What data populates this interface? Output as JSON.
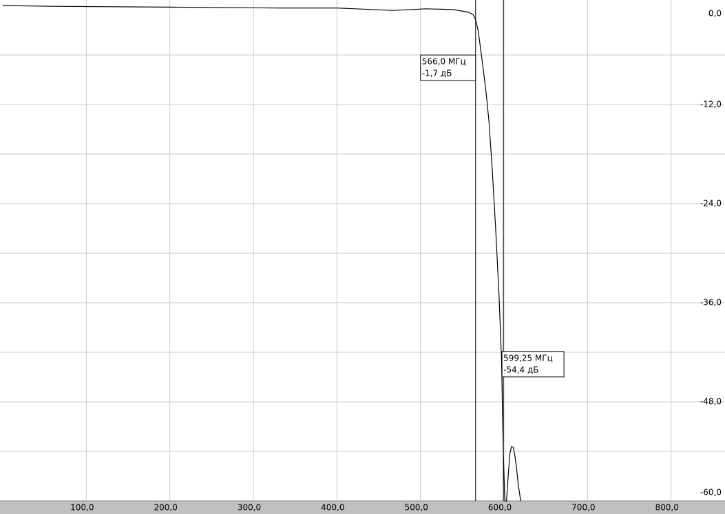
{
  "chart_data": {
    "type": "line",
    "x": [
      0,
      58,
      200,
      330,
      400,
      467,
      507,
      540,
      557,
      563,
      566,
      569,
      573,
      578,
      582,
      586,
      590,
      594,
      597,
      599.25,
      601,
      603,
      605,
      607,
      609,
      611,
      613,
      615,
      617,
      620
    ],
    "values": [
      0,
      -0.1,
      -0.2,
      -0.3,
      -0.3,
      -0.6,
      -0.4,
      -0.5,
      -0.8,
      -1.1,
      -1.7,
      -3,
      -6,
      -10,
      -14,
      -20,
      -27,
      -35,
      -42.7,
      -54.4,
      -60,
      -60,
      -57,
      -54.3,
      -53.4,
      -53.5,
      -54.5,
      -56,
      -58,
      -60
    ],
    "color": "#000000",
    "xlim": [
      0,
      860
    ],
    "ylim": [
      -60,
      0.6
    ],
    "xticks": [
      {
        "value": 100,
        "label": "100,0"
      },
      {
        "value": 200,
        "label": "200,0"
      },
      {
        "value": 300,
        "label": "300,0"
      },
      {
        "value": 400,
        "label": "400,0"
      },
      {
        "value": 500,
        "label": "500,0"
      },
      {
        "value": 600,
        "label": "600,0"
      },
      {
        "value": 700,
        "label": "700,0"
      },
      {
        "value": 800,
        "label": "800,0"
      }
    ],
    "yticks": [
      {
        "value": 0,
        "label": "0,0"
      },
      {
        "value": -12,
        "label": "-12,0"
      },
      {
        "value": -24,
        "label": "-24,0"
      },
      {
        "value": -36,
        "label": "-36,0"
      },
      {
        "value": -48,
        "label": "-48,0"
      },
      {
        "value": -60,
        "label": "-60,0"
      }
    ],
    "y_minor_ticks": [
      -6,
      -18,
      -30,
      -42,
      -54
    ],
    "grid": true,
    "markers": [
      {
        "x": 566,
        "value": -1.7,
        "freq_label": "566,0 МГц",
        "level_label": "-1,7 дБ"
      },
      {
        "x": 599.25,
        "value": -54.4,
        "freq_label": "599,25 МГц",
        "level_label": "-54,4 дБ"
      }
    ]
  }
}
